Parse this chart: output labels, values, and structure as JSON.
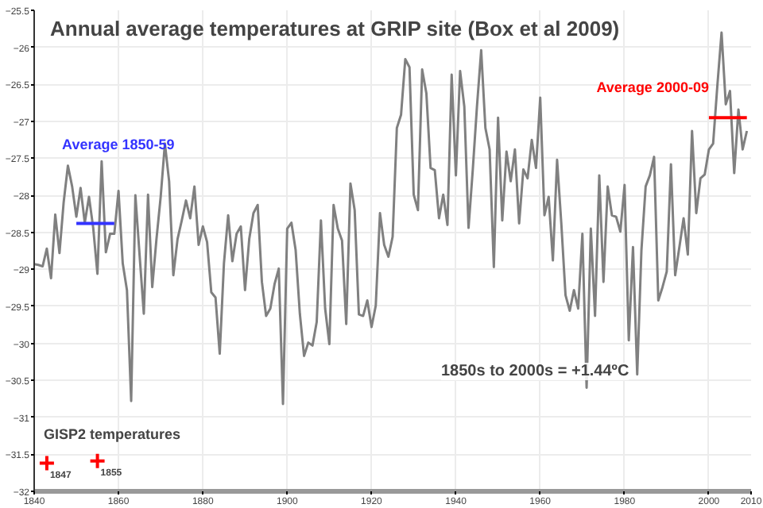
{
  "chart_data": {
    "type": "line",
    "title": "Annual average temperatures at GRIP site (Box et al 2009)",
    "xlim": [
      1840,
      2010
    ],
    "ylim": [
      -32,
      -25.5
    ],
    "xticks": [
      1840,
      1860,
      1880,
      1900,
      1920,
      1940,
      1960,
      1980,
      2000,
      2010
    ],
    "yticks": [
      -32,
      -31.5,
      -31,
      -30.5,
      -30,
      -29.5,
      -29,
      -28.5,
      -28,
      -27.5,
      -27,
      -26.5,
      -26,
      -25.5
    ],
    "grid": true,
    "marker": "none",
    "line_style": "solid",
    "x": [
      1840,
      1841,
      1842,
      1843,
      1844,
      1845,
      1846,
      1847,
      1848,
      1849,
      1850,
      1851,
      1852,
      1853,
      1854,
      1855,
      1856,
      1857,
      1858,
      1859,
      1860,
      1861,
      1862,
      1863,
      1864,
      1865,
      1866,
      1867,
      1868,
      1869,
      1870,
      1871,
      1872,
      1873,
      1874,
      1875,
      1876,
      1877,
      1878,
      1879,
      1880,
      1881,
      1882,
      1883,
      1884,
      1885,
      1886,
      1887,
      1888,
      1889,
      1890,
      1891,
      1892,
      1893,
      1894,
      1895,
      1896,
      1897,
      1898,
      1899,
      1900,
      1901,
      1902,
      1903,
      1904,
      1905,
      1906,
      1907,
      1908,
      1909,
      1910,
      1911,
      1912,
      1913,
      1914,
      1915,
      1916,
      1917,
      1918,
      1919,
      1920,
      1921,
      1922,
      1923,
      1924,
      1925,
      1926,
      1927,
      1928,
      1929,
      1930,
      1931,
      1932,
      1933,
      1934,
      1935,
      1936,
      1937,
      1938,
      1939,
      1940,
      1941,
      1942,
      1943,
      1944,
      1945,
      1946,
      1947,
      1948,
      1949,
      1950,
      1951,
      1952,
      1953,
      1954,
      1955,
      1956,
      1957,
      1958,
      1959,
      1960,
      1961,
      1962,
      1963,
      1964,
      1965,
      1966,
      1967,
      1968,
      1969,
      1970,
      1971,
      1972,
      1973,
      1974,
      1975,
      1976,
      1977,
      1978,
      1979,
      1980,
      1981,
      1982,
      1983,
      1984,
      1985,
      1986,
      1987,
      1988,
      1989,
      1990,
      1991,
      1992,
      1993,
      1994,
      1995,
      1996,
      1997,
      1998,
      1999,
      2000,
      2001,
      2002,
      2003,
      2004,
      2005,
      2006,
      2007,
      2008,
      2009
    ],
    "series": [
      {
        "color": "#808080",
        "values": [
          -28.93,
          -28.94,
          -28.96,
          -28.72,
          -29.12,
          -28.26,
          -28.78,
          -28.09,
          -27.6,
          -27.88,
          -28.29,
          -27.9,
          -28.37,
          -28.02,
          -28.44,
          -29.06,
          -27.54,
          -28.77,
          -28.52,
          -28.52,
          -27.94,
          -28.92,
          -29.28,
          -30.78,
          -28.0,
          -28.81,
          -29.6,
          -27.99,
          -29.24,
          -28.59,
          -28.02,
          -27.3,
          -27.81,
          -29.08,
          -28.59,
          -28.34,
          -28.07,
          -28.31,
          -27.88,
          -28.67,
          -28.42,
          -28.63,
          -29.31,
          -29.38,
          -30.14,
          -28.92,
          -28.27,
          -28.89,
          -28.52,
          -28.42,
          -29.28,
          -28.59,
          -28.24,
          -28.13,
          -29.17,
          -29.63,
          -29.53,
          -29.2,
          -28.99,
          -30.82,
          -28.45,
          -28.37,
          -28.74,
          -29.6,
          -30.17,
          -29.99,
          -30.03,
          -29.71,
          -28.34,
          -29.53,
          -30.01,
          -28.13,
          -28.45,
          -28.61,
          -29.74,
          -27.84,
          -28.2,
          -29.61,
          -29.63,
          -29.42,
          -29.78,
          -29.49,
          -28.24,
          -28.67,
          -28.83,
          -28.56,
          -27.09,
          -26.91,
          -26.16,
          -26.27,
          -27.99,
          -28.2,
          -26.3,
          -26.62,
          -27.63,
          -27.66,
          -28.31,
          -27.99,
          -28.4,
          -26.37,
          -27.73,
          -26.32,
          -26.8,
          -28.44,
          -27.66,
          -26.8,
          -26.04,
          -27.09,
          -27.38,
          -28.97,
          -26.95,
          -28.34,
          -27.41,
          -27.81,
          -27.38,
          -28.38,
          -27.65,
          -27.77,
          -27.25,
          -27.63,
          -26.68,
          -28.27,
          -28.02,
          -28.88,
          -27.52,
          -28.38,
          -29.35,
          -29.56,
          -29.28,
          -29.53,
          -28.52,
          -30.6,
          -28.45,
          -29.63,
          -27.73,
          -29.17,
          -27.88,
          -28.27,
          -28.29,
          -28.49,
          -27.86,
          -29.96,
          -28.7,
          -30.42,
          -28.74,
          -27.88,
          -27.73,
          -27.48,
          -29.42,
          -29.24,
          -29.03,
          -27.58,
          -29.08,
          -28.7,
          -28.31,
          -28.8,
          -27.13,
          -28.24,
          -27.77,
          -27.72,
          -27.38,
          -27.3,
          -26.52,
          -25.8,
          -26.77,
          -26.59,
          -27.7,
          -26.84,
          -27.38,
          -27.13
        ]
      },
      {
        "name": "Average 1850-59",
        "color": "#3333ff",
        "x": [
          1850,
          1859
        ],
        "values": [
          -28.38,
          -28.38
        ]
      },
      {
        "name": "Average 2000-09",
        "color": "#ff0000",
        "x": [
          2000,
          2009
        ],
        "values": [
          -26.95,
          -26.95
        ]
      },
      {
        "name": "GISP2 temperatures",
        "type": "scatter",
        "marker": "cross",
        "color": "#ff0000",
        "x": [
          1843,
          1855
        ],
        "values": [
          -31.62,
          -31.59
        ]
      }
    ],
    "annotations": [
      "1850s to 2000s = +1.44ºC",
      {
        "text": "1847",
        "x": 1843,
        "y": -31.62
      },
      {
        "text": "1855",
        "x": 1855,
        "y": -31.59
      }
    ]
  }
}
